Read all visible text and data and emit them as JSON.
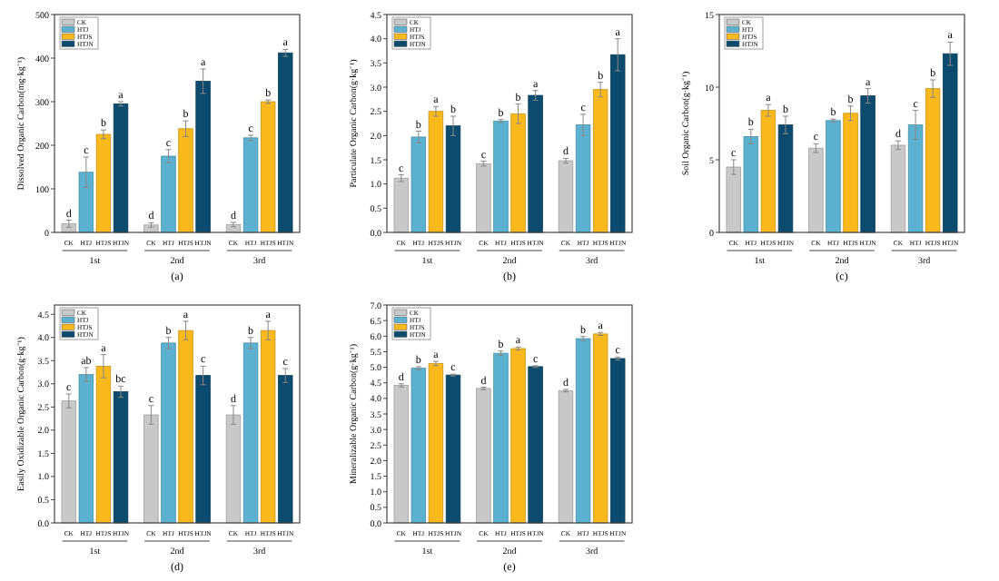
{
  "chart_data": [
    {
      "type": "bar",
      "ylabel": "Dissolved Organic Carbon(mg·kg⁻¹)",
      "categories": [
        "1st",
        "2nd",
        "3rd"
      ],
      "ylim": [
        0,
        500
      ],
      "yticks": [
        0,
        100,
        200,
        300,
        400,
        500
      ],
      "legend": "top left",
      "annotations": [
        "(a)"
      ],
      "series": [
        {
          "name": "CK",
          "color": "#c8c8c8",
          "values": [
            20,
            17,
            18
          ],
          "errors": [
            8,
            5,
            5
          ],
          "value_labels": [
            "d",
            "d",
            "d"
          ]
        },
        {
          "name": "HTJ",
          "color": "#5bb1cf",
          "values": [
            138,
            175,
            217
          ],
          "errors": [
            35,
            15,
            6
          ],
          "value_labels": [
            "c",
            "c",
            "c"
          ]
        },
        {
          "name": "HTJS",
          "color": "#f9b81c",
          "values": [
            225,
            238,
            300
          ],
          "errors": [
            10,
            18,
            4
          ],
          "value_labels": [
            "b",
            "b",
            "b"
          ]
        },
        {
          "name": "HTJN",
          "color": "#0c4a6e",
          "values": [
            295,
            347,
            412
          ],
          "errors": [
            5,
            28,
            8
          ],
          "value_labels": [
            "a",
            "a",
            "a"
          ]
        }
      ]
    },
    {
      "type": "bar",
      "ylabel": "Particulate Organic Carbon(g·kg⁻¹)",
      "categories": [
        "1st",
        "2nd",
        "3rd"
      ],
      "ylim": [
        0,
        4.5
      ],
      "yticks": [
        {
          "value": 0,
          "label": "0.0"
        },
        0.5,
        {
          "value": 1,
          "label": "1.0"
        },
        1.5,
        {
          "value": 2,
          "label": "2.0"
        },
        2.5,
        {
          "value": 3,
          "label": "3.0"
        },
        3.5,
        {
          "value": 4,
          "label": "4.0"
        },
        4.5
      ],
      "legend": "top left",
      "annotations": [
        "(b)"
      ],
      "series": [
        {
          "name": "CK",
          "color": "#c8c8c8",
          "values": [
            1.12,
            1.42,
            1.48
          ],
          "errors": [
            0.07,
            0.05,
            0.05
          ],
          "value_labels": [
            "c",
            "c",
            "d"
          ]
        },
        {
          "name": "HTJ",
          "color": "#5bb1cf",
          "values": [
            1.97,
            2.3,
            2.22
          ],
          "errors": [
            0.12,
            0.03,
            0.22
          ],
          "value_labels": [
            "b",
            "b",
            "c"
          ]
        },
        {
          "name": "HTJS",
          "color": "#f9b81c",
          "values": [
            2.5,
            2.45,
            2.95
          ],
          "errors": [
            0.1,
            0.2,
            0.15
          ],
          "value_labels": [
            "a",
            "b",
            "b"
          ]
        },
        {
          "name": "HTJN",
          "color": "#0c4a6e",
          "values": [
            2.2,
            2.83,
            3.67
          ],
          "errors": [
            0.2,
            0.1,
            0.33
          ],
          "value_labels": [
            "b",
            "a",
            "a"
          ]
        }
      ]
    },
    {
      "type": "bar",
      "ylabel": "Soil Organic Carbon(g·kg⁻¹)",
      "categories": [
        "1st",
        "2nd",
        "3rd"
      ],
      "ylim": [
        0,
        15
      ],
      "yticks": [
        0,
        5,
        10,
        15
      ],
      "legend": "top left",
      "annotations": [
        "(c)"
      ],
      "series": [
        {
          "name": "CK",
          "color": "#c8c8c8",
          "values": [
            4.5,
            5.8,
            6.0
          ],
          "errors": [
            0.5,
            0.3,
            0.3
          ],
          "value_labels": [
            "c",
            "c",
            "d"
          ]
        },
        {
          "name": "HTJ",
          "color": "#5bb1cf",
          "values": [
            6.6,
            7.7,
            7.4
          ],
          "errors": [
            0.5,
            0.1,
            1.0
          ],
          "value_labels": [
            "b",
            "b",
            "c"
          ]
        },
        {
          "name": "HTJS",
          "color": "#f9b81c",
          "values": [
            8.4,
            8.2,
            9.9
          ],
          "errors": [
            0.4,
            0.5,
            0.6
          ],
          "value_labels": [
            "a",
            "b",
            "b"
          ]
        },
        {
          "name": "HTJN",
          "color": "#0c4a6e",
          "values": [
            7.4,
            9.4,
            12.3
          ],
          "errors": [
            0.6,
            0.5,
            0.8
          ],
          "value_labels": [
            "b",
            "a",
            "a"
          ]
        }
      ]
    },
    {
      "type": "bar",
      "ylabel": "Easily Oxidizable Organic Carbon(g·kg⁻¹)",
      "categories": [
        "1st",
        "2nd",
        "3rd"
      ],
      "ylim": [
        0,
        4.7
      ],
      "yticks": [
        {
          "value": 0,
          "label": "0.0"
        },
        0.5,
        {
          "value": 1,
          "label": "1.0"
        },
        1.5,
        {
          "value": 2,
          "label": "2.0"
        },
        2.5,
        {
          "value": 3,
          "label": "3.0"
        },
        3.5,
        {
          "value": 4,
          "label": "4.0"
        },
        4.5
      ],
      "legend": "top left",
      "annotations": [
        "(d)"
      ],
      "series": [
        {
          "name": "CK",
          "color": "#c8c8c8",
          "values": [
            2.63,
            2.33,
            2.33
          ],
          "errors": [
            0.15,
            0.2,
            0.2
          ],
          "value_labels": [
            "c",
            "c",
            "d"
          ]
        },
        {
          "name": "HTJ",
          "color": "#5bb1cf",
          "values": [
            3.2,
            3.88,
            3.88
          ],
          "errors": [
            0.15,
            0.12,
            0.12
          ],
          "value_labels": [
            "ab",
            "b",
            "b"
          ]
        },
        {
          "name": "HTJS",
          "color": "#f9b81c",
          "values": [
            3.38,
            4.15,
            4.15
          ],
          "errors": [
            0.25,
            0.2,
            0.2
          ],
          "value_labels": [
            "a",
            "a",
            "a"
          ]
        },
        {
          "name": "HTJN",
          "color": "#0c4a6e",
          "values": [
            2.83,
            3.18,
            3.18
          ],
          "errors": [
            0.12,
            0.2,
            0.15
          ],
          "value_labels": [
            "bc",
            "c",
            "c"
          ]
        }
      ]
    },
    {
      "type": "bar",
      "ylabel": "Mineralizable Organic Carbon(g·kg⁻¹)",
      "categories": [
        "1st",
        "2nd",
        "3rd"
      ],
      "ylim": [
        0,
        7
      ],
      "yticks": [
        {
          "value": 0,
          "label": "0.0"
        },
        0.5,
        {
          "value": 1,
          "label": "1.0"
        },
        1.5,
        {
          "value": 2,
          "label": "2.0"
        },
        2.5,
        {
          "value": 3,
          "label": "3.0"
        },
        3.5,
        {
          "value": 4,
          "label": "4.0"
        },
        4.5,
        {
          "value": 5,
          "label": "5.0"
        },
        5.5,
        {
          "value": 6,
          "label": "6.0"
        },
        6.5,
        {
          "value": 7,
          "label": "7.0"
        }
      ],
      "legend": "top left",
      "annotations": [
        "(e)"
      ],
      "series": [
        {
          "name": "CK",
          "color": "#c8c8c8",
          "values": [
            4.42,
            4.32,
            4.25
          ],
          "errors": [
            0.05,
            0.04,
            0.04
          ],
          "value_labels": [
            "d",
            "d",
            "d"
          ]
        },
        {
          "name": "HTJ",
          "color": "#5bb1cf",
          "values": [
            4.97,
            5.45,
            5.92
          ],
          "errors": [
            0.05,
            0.07,
            0.07
          ],
          "value_labels": [
            "b",
            "b",
            "b"
          ]
        },
        {
          "name": "HTJS",
          "color": "#f9b81c",
          "values": [
            5.12,
            5.6,
            6.07
          ],
          "errors": [
            0.07,
            0.05,
            0.05
          ],
          "value_labels": [
            "a",
            "a",
            "a"
          ]
        },
        {
          "name": "HTJN",
          "color": "#0c4a6e",
          "values": [
            4.75,
            5.02,
            5.28
          ],
          "errors": [
            0.03,
            0.03,
            0.05
          ],
          "value_labels": [
            "c",
            "c",
            "c"
          ]
        }
      ]
    }
  ]
}
